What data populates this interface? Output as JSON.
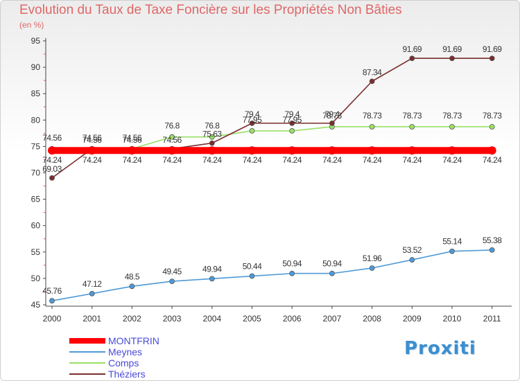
{
  "chart_data": {
    "type": "line",
    "title": "Evolution du Taux de Taxe Foncière sur les Propriétés Non Bâties",
    "subtitle": "(en %)",
    "xlabel": "",
    "ylabel": "",
    "ylim": [
      45,
      95
    ],
    "yticks": [
      45,
      50,
      55,
      60,
      65,
      70,
      75,
      80,
      85,
      90,
      95
    ],
    "categories": [
      "2000",
      "2001",
      "2002",
      "2003",
      "2004",
      "2005",
      "2006",
      "2007",
      "2008",
      "2009",
      "2010",
      "2011"
    ],
    "grid": false,
    "legend_position": "bottom-left",
    "series": [
      {
        "name": "MONTFRIN",
        "color": "#ff0000",
        "values": [
          74.24,
          74.24,
          74.24,
          74.24,
          74.24,
          74.24,
          74.24,
          74.24,
          74.24,
          74.24,
          74.24,
          74.24
        ],
        "labels": [
          "74.24",
          "74.24",
          "74.24",
          "74.24",
          "74.24",
          "74.24",
          "74.24",
          "74.24",
          "74.24",
          "74.24",
          "74.24",
          "74.24"
        ]
      },
      {
        "name": "Meynes",
        "color": "#4d9ad8",
        "values": [
          45.76,
          47.12,
          48.5,
          49.45,
          49.94,
          50.44,
          50.94,
          50.94,
          51.96,
          53.52,
          55.14,
          55.38
        ],
        "labels": [
          "45.76",
          "47.12",
          "48.5",
          "49.45",
          "49.94",
          "50.44",
          "50.94",
          "50.94",
          "51.96",
          "53.52",
          "55.14",
          "55.38"
        ]
      },
      {
        "name": "Comps",
        "color": "#99e066",
        "values": [
          74.56,
          74.56,
          74.56,
          76.8,
          76.8,
          77.95,
          77.95,
          78.73,
          78.73,
          78.73,
          78.73,
          78.73
        ],
        "labels": [
          "74.56",
          "74.56",
          "74.56",
          "76.8",
          "76.8",
          "77.95",
          "77.95",
          "78.73",
          "78.73",
          "78.73",
          "78.73",
          "78.73"
        ]
      },
      {
        "name": "Théziers",
        "color": "#7a2d2d",
        "values": [
          69.03,
          74.56,
          74.56,
          74.56,
          75.63,
          79.4,
          79.4,
          79.4,
          87.34,
          91.69,
          91.69,
          91.69
        ],
        "labels": [
          "69.03",
          "74.56",
          "74.56",
          "74.56",
          "75.63",
          "79.4",
          "79.4",
          "79.4",
          "87.34",
          "91.69",
          "91.69",
          "91.69"
        ]
      }
    ]
  },
  "branding": {
    "logo_text": "Proxiti"
  }
}
